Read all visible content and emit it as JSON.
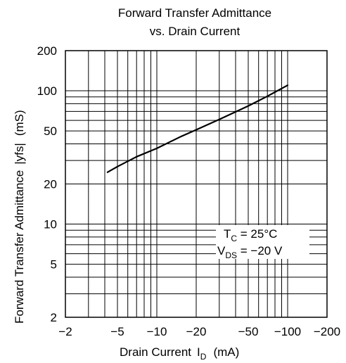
{
  "chart_data": {
    "type": "line",
    "title_lines": [
      "Forward Transfer Admittance",
      "vs. Drain Current"
    ],
    "xlabel": "Drain Current",
    "xlabel_symbol": "I",
    "xlabel_sub": "D",
    "xlabel_unit": "(mA)",
    "ylabel": "Forward Transfer Admittance",
    "ylabel_symbol": "|yfs|",
    "ylabel_unit": "(mS)",
    "x_scale": "log",
    "y_scale": "log",
    "x_direction": "negative values, magnitude increasing to the right",
    "xlim": [
      -2,
      -200
    ],
    "ylim": [
      2,
      200
    ],
    "x_ticks": [
      -2,
      -5,
      -10,
      -20,
      -50,
      -100,
      -200
    ],
    "x_tick_labels": [
      "−2",
      "−5",
      "−10",
      "−20",
      "−50",
      "−100",
      "−200"
    ],
    "y_ticks": [
      2,
      5,
      10,
      20,
      50,
      100,
      200
    ],
    "y_tick_labels": [
      "2",
      "5",
      "10",
      "20",
      "50",
      "100",
      "200"
    ],
    "grid": true,
    "series": [
      {
        "x": [
          -4.2,
          -5,
          -7,
          -10,
          -15,
          -20,
          -30,
          -50,
          -70,
          -100
        ],
        "y": [
          24.5,
          27,
          32,
          37,
          45,
          51,
          61,
          77,
          91,
          110
        ]
      }
    ],
    "annotation": {
      "line1_main": "T",
      "line1_sub": "C",
      "line1_rest": " = 25°C",
      "line2_main": "V",
      "line2_sub": "DS",
      "line2_rest": " = −20 V"
    }
  }
}
